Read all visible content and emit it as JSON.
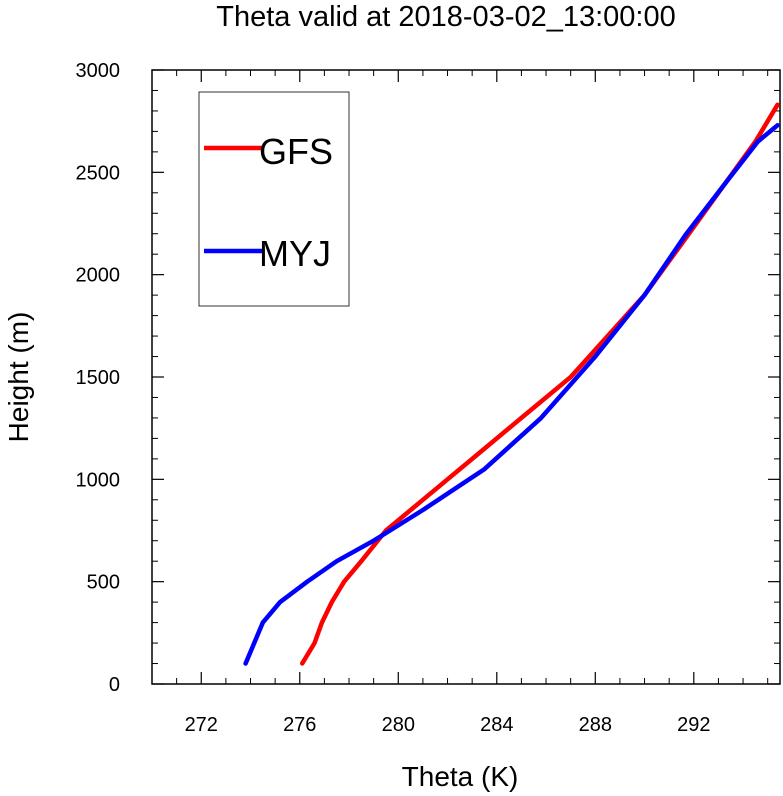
{
  "chart_data": {
    "type": "line",
    "title": "Theta valid at 2018-03-02_13:00:00",
    "xlabel": "Theta (K)",
    "ylabel": "Height (m)",
    "xlim": [
      270,
      295.5
    ],
    "ylim": [
      0,
      3000
    ],
    "xticks": [
      272,
      276,
      280,
      284,
      288,
      292
    ],
    "xtick_labels": [
      "272",
      "276",
      "280",
      "284",
      "288",
      "292"
    ],
    "yticks": [
      0,
      500,
      1000,
      1500,
      2000,
      2500,
      3000
    ],
    "ytick_labels": [
      "0",
      "500",
      "1000",
      "1500",
      "2000",
      "2500",
      "3000"
    ],
    "grid": false,
    "legend_position": "top-left",
    "series": [
      {
        "name": "GFS",
        "color": "#ff0000",
        "x": [
          276.1,
          276.6,
          276.9,
          277.3,
          277.8,
          278.5,
          279.5,
          281.0,
          283.0,
          285.0,
          287.0,
          288.5,
          290.0,
          291.5,
          293.0,
          294.5,
          295.4
        ],
        "y": [
          100,
          200,
          300,
          400,
          500,
          600,
          750,
          900,
          1100,
          1300,
          1500,
          1700,
          1900,
          2150,
          2400,
          2650,
          2830
        ]
      },
      {
        "name": "MYJ",
        "color": "#0000ff",
        "x": [
          273.8,
          274.5,
          275.2,
          276.3,
          277.5,
          279.0,
          281.0,
          283.5,
          285.8,
          288.0,
          290.0,
          291.7,
          293.3,
          294.6,
          295.4
        ],
        "y": [
          100,
          300,
          400,
          500,
          600,
          700,
          850,
          1050,
          1300,
          1600,
          1900,
          2200,
          2450,
          2650,
          2730
        ]
      }
    ]
  }
}
